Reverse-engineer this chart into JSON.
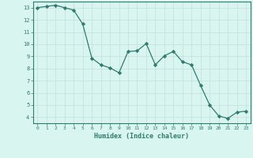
{
  "x": [
    0,
    1,
    2,
    3,
    4,
    5,
    6,
    7,
    8,
    9,
    10,
    11,
    12,
    13,
    14,
    15,
    16,
    17,
    18,
    19,
    20,
    21,
    22,
    23
  ],
  "y": [
    13.0,
    13.1,
    13.2,
    13.0,
    12.8,
    11.65,
    8.85,
    8.3,
    8.05,
    7.65,
    9.4,
    9.45,
    10.05,
    8.3,
    9.05,
    9.4,
    8.55,
    8.3,
    6.6,
    5.0,
    4.1,
    3.9,
    4.4,
    4.5
  ],
  "line_color": "#2e7d6e",
  "marker": "D",
  "marker_size": 2.2,
  "bg_color": "#d8f5f0",
  "grid_color_minor": "#e0eeeb",
  "grid_color": "#c8deda",
  "axis_color": "#2e7d6e",
  "tick_color": "#2e7d6e",
  "xlabel": "Humidex (Indice chaleur)",
  "xlabel_color": "#2e7d6e",
  "xlim": [
    -0.5,
    23.5
  ],
  "ylim": [
    3.5,
    13.5
  ],
  "yticks": [
    4,
    5,
    6,
    7,
    8,
    9,
    10,
    11,
    12,
    13
  ],
  "xticks": [
    0,
    1,
    2,
    3,
    4,
    5,
    6,
    7,
    8,
    9,
    10,
    11,
    12,
    13,
    14,
    15,
    16,
    17,
    18,
    19,
    20,
    21,
    22,
    23
  ]
}
